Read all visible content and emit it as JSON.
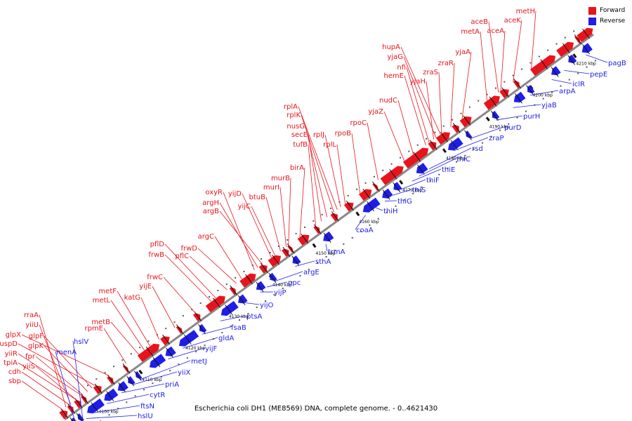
{
  "caption": "Escherichia coli DH1 (ME8569) DNA, complete genome. - 0..4621430",
  "colors": {
    "forward": "#e8141c",
    "reverse": "#1e1ee8",
    "backbone": "#888888"
  },
  "legend": [
    {
      "label": "Forward",
      "color": "#e8141c"
    },
    {
      "label": "Reverse",
      "color": "#1e1ee8"
    }
  ],
  "scale": {
    "unit": "kbp",
    "ticks": [
      {
        "kbp": 4100,
        "label": "4100 kbp"
      },
      {
        "kbp": 4110,
        "label": "4110 kbp"
      },
      {
        "kbp": 4120,
        "label": "4120 kbp"
      },
      {
        "kbp": 4130,
        "label": "4130 kbp"
      },
      {
        "kbp": 4140,
        "label": "4140 kbp"
      },
      {
        "kbp": 4150,
        "label": "4150 kbp"
      },
      {
        "kbp": 4160,
        "label": "4160 kbp"
      },
      {
        "kbp": 4170,
        "label": "4170 kbp"
      },
      {
        "kbp": 4180,
        "label": "4180 kbp"
      },
      {
        "kbp": 4190,
        "label": "4190 kbp"
      },
      {
        "kbp": 4200,
        "label": "4200 kbp"
      },
      {
        "kbp": 4210,
        "label": "4210 kbp"
      }
    ]
  },
  "forward_labels": [
    "sbp",
    "cdh",
    "tpiA",
    "yiiR",
    "uspD",
    "glpX",
    "yiiS",
    "fpr",
    "yiiU",
    "rraA",
    "glpK",
    "glpF",
    "rpmE",
    "metB",
    "metL",
    "metF",
    "katG",
    "yijE",
    "frwC",
    "frwB",
    "pflC",
    "pflD",
    "frwD",
    "argC",
    "argB",
    "argH",
    "oxyR",
    "yijD",
    "yijC",
    "btuB",
    "murI",
    "murB",
    "birA",
    "tufB",
    "secE",
    "nusG",
    "rplK",
    "rplA",
    "rplJ",
    "rplL",
    "rpoB",
    "rpoC",
    "yjaZ",
    "nudC",
    "hemE",
    "nfi",
    "yjaG",
    "hupA",
    "yjaH",
    "zraS",
    "zraR",
    "yjaA",
    "metA",
    "aceB",
    "aceA",
    "aceK",
    "metH"
  ],
  "reverse_labels": [
    "menA",
    "hslV",
    "hslU",
    "ftsN",
    "cytR",
    "priA",
    "yiiX",
    "metJ",
    "yijF",
    "gldA",
    "fsaB",
    "ptsA",
    "yijO",
    "yijP",
    "ppc",
    "argE",
    "sthA",
    "trmA",
    "coaA",
    "thiH",
    "thiG",
    "thiS",
    "thiF",
    "thiE",
    "thiC",
    "rsd",
    "zraP",
    "purD",
    "purH",
    "yjaB",
    "arpA",
    "iclR",
    "pepE",
    "pagB"
  ]
}
